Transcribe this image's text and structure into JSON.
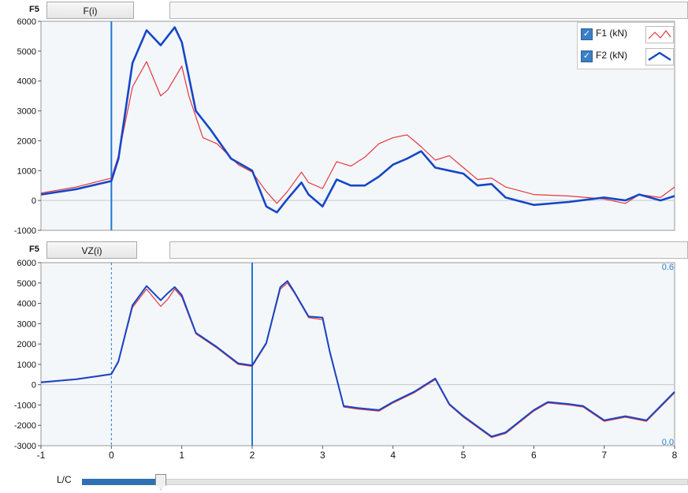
{
  "panels": {
    "top": {
      "tag": "F5",
      "button_label": "F(i)",
      "value_box": ""
    },
    "bottom": {
      "tag": "F5",
      "button_label": "VZ(i)",
      "value_box": ""
    }
  },
  "legend": {
    "items": [
      {
        "checked": true,
        "label": "F1 (kN)",
        "color": "#e8363f"
      },
      {
        "checked": true,
        "label": "F2 (kN)",
        "color": "#1646c8"
      }
    ]
  },
  "slider": {
    "label": "L/C",
    "value_fraction": 0.13
  },
  "chart_data": [
    {
      "type": "line",
      "title": "",
      "xlabel": "",
      "ylabel": "",
      "xlim": [
        -1,
        8
      ],
      "ylim": [
        -1000,
        6000
      ],
      "yticks": [
        "6000",
        "5000",
        "4000",
        "3000",
        "2000",
        "1000",
        "0",
        "-1000"
      ],
      "ytick_values": [
        6000,
        5000,
        4000,
        3000,
        2000,
        1000,
        0,
        -1000
      ],
      "vertical_markers": [
        0
      ],
      "legend_position": "top-right",
      "series": [
        {
          "name": "F1 (kN)",
          "color": "#e8363f",
          "x": [
            -1,
            -0.5,
            0,
            0.1,
            0.3,
            0.5,
            0.7,
            0.8,
            1.0,
            1.1,
            1.3,
            1.5,
            1.8,
            2.0,
            2.2,
            2.35,
            2.5,
            2.7,
            2.8,
            3.0,
            3.2,
            3.4,
            3.6,
            3.8,
            4.0,
            4.2,
            4.4,
            4.6,
            4.8,
            5.0,
            5.2,
            5.4,
            5.6,
            6.0,
            6.5,
            7.0,
            7.3,
            7.5,
            7.8,
            8.0
          ],
          "y": [
            250,
            450,
            750,
            1500,
            3800,
            4650,
            3500,
            3700,
            4500,
            3500,
            2100,
            1900,
            1200,
            950,
            300,
            -100,
            300,
            950,
            600,
            400,
            1300,
            1150,
            1450,
            1900,
            2100,
            2200,
            1800,
            1350,
            1500,
            1100,
            700,
            750,
            450,
            200,
            150,
            50,
            -100,
            200,
            100,
            450
          ]
        },
        {
          "name": "F2 (kN)",
          "color": "#1646c8",
          "x": [
            -1,
            -0.5,
            0,
            0.1,
            0.3,
            0.5,
            0.7,
            0.8,
            0.9,
            1.0,
            1.2,
            1.4,
            1.7,
            2.0,
            2.2,
            2.35,
            2.5,
            2.7,
            2.8,
            3.0,
            3.2,
            3.4,
            3.6,
            3.8,
            4.0,
            4.2,
            4.4,
            4.6,
            4.8,
            5.0,
            5.2,
            5.4,
            5.6,
            6.0,
            6.5,
            7.0,
            7.3,
            7.5,
            7.8,
            8.0
          ],
          "y": [
            200,
            380,
            650,
            1400,
            4600,
            5700,
            5200,
            5500,
            5800,
            5300,
            3000,
            2400,
            1400,
            1000,
            -200,
            -400,
            50,
            600,
            200,
            -200,
            700,
            500,
            500,
            800,
            1200,
            1400,
            1650,
            1100,
            1000,
            900,
            500,
            550,
            100,
            -150,
            -50,
            100,
            0,
            200,
            0,
            150
          ]
        }
      ]
    },
    {
      "type": "line",
      "title": "",
      "xlabel": "",
      "ylabel": "",
      "xlim": [
        -1,
        8
      ],
      "ylim": [
        -3000,
        6000
      ],
      "xticks": [
        "-1",
        "0",
        "1",
        "2",
        "3",
        "4",
        "5",
        "6",
        "7",
        "8"
      ],
      "yticks": [
        "6000",
        "5000",
        "4000",
        "3000",
        "2000",
        "1000",
        "0",
        "-1000",
        "-2000",
        "-3000"
      ],
      "ytick_values": [
        6000,
        5000,
        4000,
        3000,
        2000,
        1000,
        0,
        -1000,
        -2000,
        -3000
      ],
      "right_axis_labels": [
        "0.6",
        "0.0"
      ],
      "vertical_markers": [
        0,
        2
      ],
      "series": [
        {
          "name": "F1",
          "color": "#e8363f",
          "x": [
            -1,
            -0.5,
            0,
            0.1,
            0.3,
            0.5,
            0.7,
            0.8,
            0.9,
            1.0,
            1.2,
            1.5,
            1.8,
            2.0,
            2.2,
            2.4,
            2.5,
            2.6,
            2.8,
            3.0,
            3.1,
            3.3,
            3.5,
            3.8,
            4.0,
            4.3,
            4.6,
            4.8,
            5.0,
            5.4,
            5.6,
            6.0,
            6.2,
            6.5,
            6.7,
            7.0,
            7.3,
            7.6,
            8.0
          ],
          "y": [
            100,
            250,
            500,
            1100,
            3800,
            4700,
            3850,
            4200,
            4700,
            4300,
            2500,
            1800,
            1000,
            900,
            2000,
            4700,
            5000,
            4500,
            3300,
            3200,
            1600,
            -1100,
            -1200,
            -1300,
            -900,
            -400,
            250,
            -1000,
            -1600,
            -2600,
            -2400,
            -1300,
            -900,
            -1000,
            -1100,
            -1800,
            -1600,
            -1800,
            -400
          ]
        },
        {
          "name": "F2",
          "color": "#1646c8",
          "x": [
            -1,
            -0.5,
            0,
            0.1,
            0.3,
            0.5,
            0.7,
            0.8,
            0.9,
            1.0,
            1.2,
            1.5,
            1.8,
            2.0,
            2.2,
            2.4,
            2.5,
            2.6,
            2.8,
            3.0,
            3.1,
            3.3,
            3.5,
            3.8,
            4.0,
            4.3,
            4.6,
            4.8,
            5.0,
            5.4,
            5.6,
            6.0,
            6.2,
            6.5,
            6.7,
            7.0,
            7.3,
            7.6,
            8.0
          ],
          "y": [
            120,
            270,
            520,
            1150,
            3900,
            4850,
            4150,
            4500,
            4800,
            4400,
            2550,
            1850,
            1050,
            950,
            2050,
            4800,
            5100,
            4550,
            3350,
            3300,
            1650,
            -1050,
            -1150,
            -1250,
            -850,
            -350,
            300,
            -950,
            -1550,
            -2550,
            -2350,
            -1250,
            -850,
            -950,
            -1050,
            -1750,
            -1550,
            -1750,
            -350
          ]
        }
      ]
    }
  ]
}
